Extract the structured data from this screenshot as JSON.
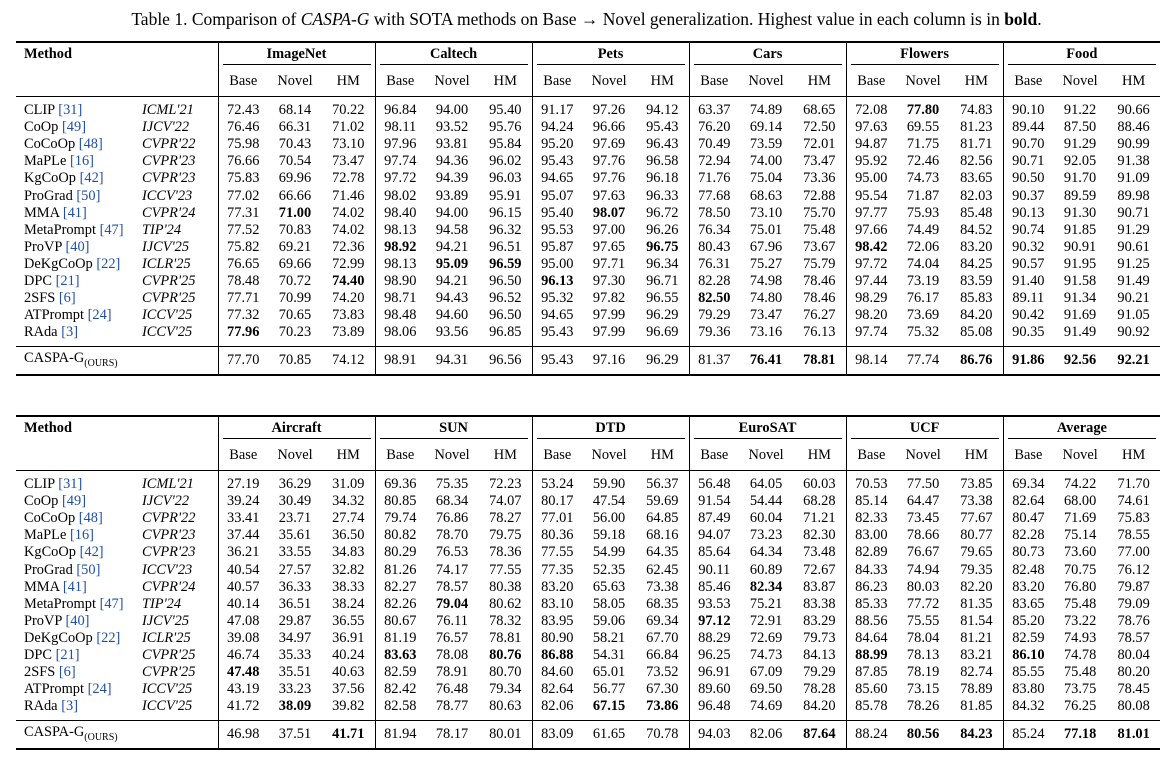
{
  "caption": {
    "prefix": "Table 1. Comparison of ",
    "method": "CASPA-G",
    "middle": " with SOTA methods on Base → Novel generalization. Highest value in each column is in ",
    "bold_word": "bold",
    "suffix": "."
  },
  "colors": {
    "citation": "#1f4fa8",
    "text": "#000000",
    "background": "#ffffff"
  },
  "method_header": "Method",
  "subheaders": [
    "Base",
    "Novel",
    "HM"
  ],
  "tables": [
    {
      "datasets": [
        "ImageNet",
        "Caltech",
        "Pets",
        "Cars",
        "Flowers",
        "Food"
      ],
      "rows": [
        {
          "name": "CLIP",
          "cite": "31",
          "venue": "ICML'21",
          "values": [
            "72.43",
            "68.14",
            "70.22",
            "96.84",
            "94.00",
            "95.40",
            "91.17",
            "97.26",
            "94.12",
            "63.37",
            "74.89",
            "68.65",
            "72.08",
            "77.80",
            "74.83",
            "90.10",
            "91.22",
            "90.66"
          ],
          "bold": [
            13
          ]
        },
        {
          "name": "CoOp",
          "cite": "49",
          "venue": "IJCV'22",
          "values": [
            "76.46",
            "66.31",
            "71.02",
            "98.11",
            "93.52",
            "95.76",
            "94.24",
            "96.66",
            "95.43",
            "76.20",
            "69.14",
            "72.50",
            "97.63",
            "69.55",
            "81.23",
            "89.44",
            "87.50",
            "88.46"
          ],
          "bold": []
        },
        {
          "name": "CoCoOp",
          "cite": "48",
          "venue": "CVPR'22",
          "values": [
            "75.98",
            "70.43",
            "73.10",
            "97.96",
            "93.81",
            "95.84",
            "95.20",
            "97.69",
            "96.43",
            "70.49",
            "73.59",
            "72.01",
            "94.87",
            "71.75",
            "81.71",
            "90.70",
            "91.29",
            "90.99"
          ],
          "bold": []
        },
        {
          "name": "MaPLe",
          "cite": "16",
          "venue": "CVPR'23",
          "values": [
            "76.66",
            "70.54",
            "73.47",
            "97.74",
            "94.36",
            "96.02",
            "95.43",
            "97.76",
            "96.58",
            "72.94",
            "74.00",
            "73.47",
            "95.92",
            "72.46",
            "82.56",
            "90.71",
            "92.05",
            "91.38"
          ],
          "bold": []
        },
        {
          "name": "KgCoOp",
          "cite": "42",
          "venue": "CVPR'23",
          "values": [
            "75.83",
            "69.96",
            "72.78",
            "97.72",
            "94.39",
            "96.03",
            "94.65",
            "97.76",
            "96.18",
            "71.76",
            "75.04",
            "73.36",
            "95.00",
            "74.73",
            "83.65",
            "90.50",
            "91.70",
            "91.09"
          ],
          "bold": []
        },
        {
          "name": "ProGrad",
          "cite": "50",
          "venue": "ICCV'23",
          "values": [
            "77.02",
            "66.66",
            "71.46",
            "98.02",
            "93.89",
            "95.91",
            "95.07",
            "97.63",
            "96.33",
            "77.68",
            "68.63",
            "72.88",
            "95.54",
            "71.87",
            "82.03",
            "90.37",
            "89.59",
            "89.98"
          ],
          "bold": []
        },
        {
          "name": "MMA",
          "cite": "41",
          "venue": "CVPR'24",
          "values": [
            "77.31",
            "71.00",
            "74.02",
            "98.40",
            "94.00",
            "96.15",
            "95.40",
            "98.07",
            "96.72",
            "78.50",
            "73.10",
            "75.70",
            "97.77",
            "75.93",
            "85.48",
            "90.13",
            "91.30",
            "90.71"
          ],
          "bold": [
            1,
            7
          ]
        },
        {
          "name": "MetaPrompt",
          "cite": "47",
          "venue": "TIP'24",
          "values": [
            "77.52",
            "70.83",
            "74.02",
            "98.13",
            "94.58",
            "96.32",
            "95.53",
            "97.00",
            "96.26",
            "76.34",
            "75.01",
            "75.48",
            "97.66",
            "74.49",
            "84.52",
            "90.74",
            "91.85",
            "91.29"
          ],
          "bold": []
        },
        {
          "name": "ProVP",
          "cite": "40",
          "venue": "IJCV'25",
          "values": [
            "75.82",
            "69.21",
            "72.36",
            "98.92",
            "94.21",
            "96.51",
            "95.87",
            "97.65",
            "96.75",
            "80.43",
            "67.96",
            "73.67",
            "98.42",
            "72.06",
            "83.20",
            "90.32",
            "90.91",
            "90.61"
          ],
          "bold": [
            3,
            8,
            12
          ]
        },
        {
          "name": "DeKgCoOp",
          "cite": "22",
          "venue": "ICLR'25",
          "values": [
            "76.65",
            "69.66",
            "72.99",
            "98.13",
            "95.09",
            "96.59",
            "95.00",
            "97.71",
            "96.34",
            "76.31",
            "75.27",
            "75.79",
            "97.72",
            "74.04",
            "84.25",
            "90.57",
            "91.95",
            "91.25"
          ],
          "bold": [
            4,
            5
          ]
        },
        {
          "name": "DPC",
          "cite": "21",
          "venue": "CVPR'25",
          "values": [
            "78.48",
            "70.72",
            "74.40",
            "98.90",
            "94.21",
            "96.50",
            "96.13",
            "97.30",
            "96.71",
            "82.28",
            "74.98",
            "78.46",
            "97.44",
            "73.19",
            "83.59",
            "91.40",
            "91.58",
            "91.49"
          ],
          "bold": [
            2,
            6
          ]
        },
        {
          "name": "2SFS",
          "cite": "6",
          "venue": "CVPR'25",
          "values": [
            "77.71",
            "70.99",
            "74.20",
            "98.71",
            "94.43",
            "96.52",
            "95.32",
            "97.82",
            "96.55",
            "82.50",
            "74.80",
            "78.46",
            "98.29",
            "76.17",
            "85.83",
            "89.11",
            "91.34",
            "90.21"
          ],
          "bold": [
            9
          ]
        },
        {
          "name": "ATPrompt",
          "cite": "24",
          "venue": "ICCV'25",
          "values": [
            "77.32",
            "70.65",
            "73.83",
            "98.48",
            "94.60",
            "96.50",
            "94.65",
            "97.99",
            "96.29",
            "79.29",
            "73.47",
            "76.27",
            "98.20",
            "73.69",
            "84.20",
            "90.42",
            "91.69",
            "91.05"
          ],
          "bold": []
        },
        {
          "name": "RAda",
          "cite": "3",
          "venue": "ICCV'25",
          "values": [
            "77.96",
            "70.23",
            "73.89",
            "98.06",
            "93.56",
            "96.85",
            "95.43",
            "97.99",
            "96.69",
            "79.36",
            "73.16",
            "76.13",
            "97.74",
            "75.32",
            "85.08",
            "90.35",
            "91.49",
            "90.92"
          ],
          "bold": [
            0
          ]
        }
      ],
      "ours": {
        "name": "CASPA-G",
        "sub": "(OURS)",
        "values": [
          "77.70",
          "70.85",
          "74.12",
          "98.91",
          "94.31",
          "96.56",
          "95.43",
          "97.16",
          "96.29",
          "81.37",
          "76.41",
          "78.81",
          "98.14",
          "77.74",
          "86.76",
          "91.86",
          "92.56",
          "92.21"
        ],
        "bold": [
          10,
          11,
          14,
          15,
          16,
          17
        ]
      }
    },
    {
      "datasets": [
        "Aircraft",
        "SUN",
        "DTD",
        "EuroSAT",
        "UCF",
        "Average"
      ],
      "rows": [
        {
          "name": "CLIP",
          "cite": "31",
          "venue": "ICML'21",
          "values": [
            "27.19",
            "36.29",
            "31.09",
            "69.36",
            "75.35",
            "72.23",
            "53.24",
            "59.90",
            "56.37",
            "56.48",
            "64.05",
            "60.03",
            "70.53",
            "77.50",
            "73.85",
            "69.34",
            "74.22",
            "71.70"
          ],
          "bold": []
        },
        {
          "name": "CoOp",
          "cite": "49",
          "venue": "IJCV'22",
          "values": [
            "39.24",
            "30.49",
            "34.32",
            "80.85",
            "68.34",
            "74.07",
            "80.17",
            "47.54",
            "59.69",
            "91.54",
            "54.44",
            "68.28",
            "85.14",
            "64.47",
            "73.38",
            "82.64",
            "68.00",
            "74.61"
          ],
          "bold": []
        },
        {
          "name": "CoCoOp",
          "cite": "48",
          "venue": "CVPR'22",
          "values": [
            "33.41",
            "23.71",
            "27.74",
            "79.74",
            "76.86",
            "78.27",
            "77.01",
            "56.00",
            "64.85",
            "87.49",
            "60.04",
            "71.21",
            "82.33",
            "73.45",
            "77.67",
            "80.47",
            "71.69",
            "75.83"
          ],
          "bold": []
        },
        {
          "name": "MaPLe",
          "cite": "16",
          "venue": "CVPR'23",
          "values": [
            "37.44",
            "35.61",
            "36.50",
            "80.82",
            "78.70",
            "79.75",
            "80.36",
            "59.18",
            "68.16",
            "94.07",
            "73.23",
            "82.30",
            "83.00",
            "78.66",
            "80.77",
            "82.28",
            "75.14",
            "78.55"
          ],
          "bold": []
        },
        {
          "name": "KgCoOp",
          "cite": "42",
          "venue": "CVPR'23",
          "values": [
            "36.21",
            "33.55",
            "34.83",
            "80.29",
            "76.53",
            "78.36",
            "77.55",
            "54.99",
            "64.35",
            "85.64",
            "64.34",
            "73.48",
            "82.89",
            "76.67",
            "79.65",
            "80.73",
            "73.60",
            "77.00"
          ],
          "bold": []
        },
        {
          "name": "ProGrad",
          "cite": "50",
          "venue": "ICCV'23",
          "values": [
            "40.54",
            "27.57",
            "32.82",
            "81.26",
            "74.17",
            "77.55",
            "77.35",
            "52.35",
            "62.45",
            "90.11",
            "60.89",
            "72.67",
            "84.33",
            "74.94",
            "79.35",
            "82.48",
            "70.75",
            "76.12"
          ],
          "bold": []
        },
        {
          "name": "MMA",
          "cite": "41",
          "venue": "CVPR'24",
          "values": [
            "40.57",
            "36.33",
            "38.33",
            "82.27",
            "78.57",
            "80.38",
            "83.20",
            "65.63",
            "73.38",
            "85.46",
            "82.34",
            "83.87",
            "86.23",
            "80.03",
            "82.20",
            "83.20",
            "76.80",
            "79.87"
          ],
          "bold": [
            10
          ]
        },
        {
          "name": "MetaPrompt",
          "cite": "47",
          "venue": "TIP'24",
          "values": [
            "40.14",
            "36.51",
            "38.24",
            "82.26",
            "79.04",
            "80.62",
            "83.10",
            "58.05",
            "68.35",
            "93.53",
            "75.21",
            "83.38",
            "85.33",
            "77.72",
            "81.35",
            "83.65",
            "75.48",
            "79.09"
          ],
          "bold": [
            4
          ]
        },
        {
          "name": "ProVP",
          "cite": "40",
          "venue": "IJCV'25",
          "values": [
            "47.08",
            "29.87",
            "36.55",
            "80.67",
            "76.11",
            "78.32",
            "83.95",
            "59.06",
            "69.34",
            "97.12",
            "72.91",
            "83.29",
            "88.56",
            "75.55",
            "81.54",
            "85.20",
            "73.22",
            "78.76"
          ],
          "bold": [
            9
          ]
        },
        {
          "name": "DeKgCoOp",
          "cite": "22",
          "venue": "ICLR'25",
          "values": [
            "39.08",
            "34.97",
            "36.91",
            "81.19",
            "76.57",
            "78.81",
            "80.90",
            "58.21",
            "67.70",
            "88.29",
            "72.69",
            "79.73",
            "84.64",
            "78.04",
            "81.21",
            "82.59",
            "74.93",
            "78.57"
          ],
          "bold": []
        },
        {
          "name": "DPC",
          "cite": "21",
          "venue": "CVPR'25",
          "values": [
            "46.74",
            "35.33",
            "40.24",
            "83.63",
            "78.08",
            "80.76",
            "86.88",
            "54.31",
            "66.84",
            "96.25",
            "74.73",
            "84.13",
            "88.99",
            "78.13",
            "83.21",
            "86.10",
            "74.78",
            "80.04"
          ],
          "bold": [
            3,
            5,
            6,
            12,
            15
          ]
        },
        {
          "name": "2SFS",
          "cite": "6",
          "venue": "CVPR'25",
          "values": [
            "47.48",
            "35.51",
            "40.63",
            "82.59",
            "78.91",
            "80.70",
            "84.60",
            "65.01",
            "73.52",
            "96.91",
            "67.09",
            "79.29",
            "87.85",
            "78.19",
            "82.74",
            "85.55",
            "75.48",
            "80.20"
          ],
          "bold": [
            0
          ]
        },
        {
          "name": "ATPrompt",
          "cite": "24",
          "venue": "ICCV'25",
          "values": [
            "43.19",
            "33.23",
            "37.56",
            "82.42",
            "76.48",
            "79.34",
            "82.64",
            "56.77",
            "67.30",
            "89.60",
            "69.50",
            "78.28",
            "85.60",
            "73.15",
            "78.89",
            "83.80",
            "73.75",
            "78.45"
          ],
          "bold": []
        },
        {
          "name": "RAda",
          "cite": "3",
          "venue": "ICCV'25",
          "values": [
            "41.72",
            "38.09",
            "39.82",
            "82.58",
            "78.77",
            "80.63",
            "82.06",
            "67.15",
            "73.86",
            "96.48",
            "74.69",
            "84.20",
            "85.78",
            "78.26",
            "81.85",
            "84.32",
            "76.25",
            "80.08"
          ],
          "bold": [
            1,
            7,
            8
          ]
        }
      ],
      "ours": {
        "name": "CASPA-G",
        "sub": "(OURS)",
        "values": [
          "46.98",
          "37.51",
          "41.71",
          "81.94",
          "78.17",
          "80.01",
          "83.09",
          "61.65",
          "70.78",
          "94.03",
          "82.06",
          "87.64",
          "88.24",
          "80.56",
          "84.23",
          "85.24",
          "77.18",
          "81.01"
        ],
        "bold": [
          2,
          11,
          13,
          14,
          16,
          17
        ]
      }
    }
  ]
}
